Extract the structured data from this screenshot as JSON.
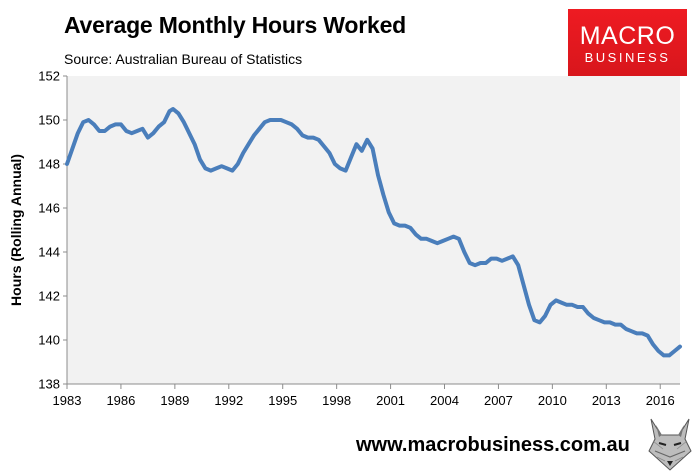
{
  "title": "Average Monthly Hours Worked",
  "subtitle": "Source: Australian Bureau of Statistics",
  "logo": {
    "line1": "MACRO",
    "line2": "BUSINESS"
  },
  "footer": {
    "url": "www.macrobusiness.com.au"
  },
  "colors": {
    "line": "#4a7ebb",
    "plot_bg": "#f2f2f2",
    "logo_bg": "#e31b23"
  },
  "chart_data": {
    "type": "line",
    "title": "Average Monthly Hours Worked",
    "xlabel": "",
    "ylabel": "Hours (Rolling Annual)",
    "xlim": [
      1983,
      2017.1
    ],
    "ylim": [
      138,
      152
    ],
    "grid": false,
    "legend": "none",
    "x_ticks": [
      "1983",
      "1986",
      "1989",
      "1992",
      "1995",
      "1998",
      "2001",
      "2004",
      "2007",
      "2010",
      "2013",
      "2016"
    ],
    "y_ticks": [
      "138",
      "140",
      "142",
      "144",
      "146",
      "148",
      "150",
      "152"
    ],
    "series": [
      {
        "x": [
          1983.0,
          1983.3,
          1983.6,
          1983.9,
          1984.2,
          1984.5,
          1984.8,
          1985.1,
          1985.4,
          1985.7,
          1986.0,
          1986.3,
          1986.6,
          1986.9,
          1987.2,
          1987.5,
          1987.8,
          1988.1,
          1988.4,
          1988.7,
          1988.9,
          1989.2,
          1989.5,
          1989.8,
          1990.1,
          1990.4,
          1990.7,
          1991.0,
          1991.3,
          1991.6,
          1991.9,
          1992.2,
          1992.5,
          1992.8,
          1993.1,
          1993.4,
          1993.7,
          1994.0,
          1994.3,
          1994.6,
          1994.9,
          1995.2,
          1995.5,
          1995.8,
          1996.1,
          1996.4,
          1996.7,
          1997.0,
          1997.3,
          1997.6,
          1997.9,
          1998.2,
          1998.5,
          1998.8,
          1999.1,
          1999.4,
          1999.7,
          2000.0,
          2000.3,
          2000.6,
          2000.9,
          2001.2,
          2001.5,
          2001.8,
          2002.1,
          2002.4,
          2002.7,
          2003.0,
          2003.3,
          2003.6,
          2003.9,
          2004.2,
          2004.5,
          2004.8,
          2005.1,
          2005.4,
          2005.7,
          2006.0,
          2006.3,
          2006.6,
          2006.9,
          2007.2,
          2007.5,
          2007.8,
          2008.1,
          2008.4,
          2008.7,
          2009.0,
          2009.3,
          2009.6,
          2009.9,
          2010.2,
          2010.5,
          2010.8,
          2011.1,
          2011.4,
          2011.7,
          2012.0,
          2012.3,
          2012.6,
          2012.9,
          2013.2,
          2013.5,
          2013.8,
          2014.1,
          2014.4,
          2014.7,
          2015.0,
          2015.3,
          2015.6,
          2015.9,
          2016.2,
          2016.5,
          2016.8,
          2017.1
        ],
        "values": [
          148.0,
          148.7,
          149.4,
          149.9,
          150.0,
          149.8,
          149.5,
          149.5,
          149.7,
          149.8,
          149.8,
          149.5,
          149.4,
          149.5,
          149.6,
          149.2,
          149.4,
          149.7,
          149.9,
          150.4,
          150.5,
          150.3,
          149.9,
          149.4,
          148.9,
          148.2,
          147.8,
          147.7,
          147.8,
          147.9,
          147.8,
          147.7,
          148.0,
          148.5,
          148.9,
          149.3,
          149.6,
          149.9,
          150.0,
          150.0,
          150.0,
          149.9,
          149.8,
          149.6,
          149.3,
          149.2,
          149.2,
          149.1,
          148.8,
          148.5,
          148.0,
          147.8,
          147.7,
          148.3,
          148.9,
          148.6,
          149.1,
          148.7,
          147.5,
          146.6,
          145.8,
          145.3,
          145.2,
          145.2,
          145.1,
          144.8,
          144.6,
          144.6,
          144.5,
          144.4,
          144.5,
          144.6,
          144.7,
          144.6,
          144.0,
          143.5,
          143.4,
          143.5,
          143.5,
          143.7,
          143.7,
          143.6,
          143.7,
          143.8,
          143.4,
          142.5,
          141.6,
          140.9,
          140.8,
          141.1,
          141.6,
          141.8,
          141.7,
          141.6,
          141.6,
          141.5,
          141.5,
          141.2,
          141.0,
          140.9,
          140.8,
          140.8,
          140.7,
          140.7,
          140.5,
          140.4,
          140.3,
          140.3,
          140.2,
          139.8,
          139.5,
          139.3,
          139.3,
          139.5,
          139.7
        ]
      }
    ]
  }
}
